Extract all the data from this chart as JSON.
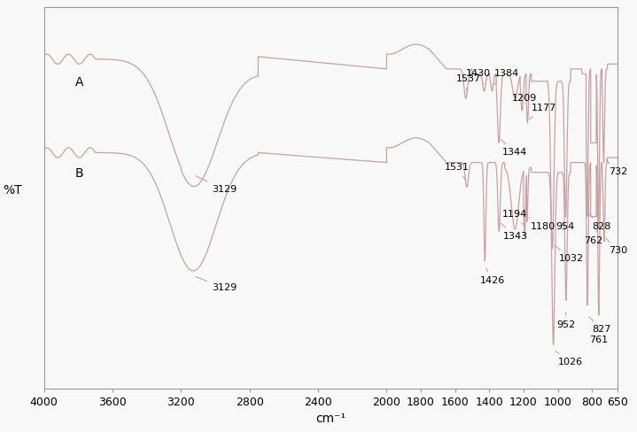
{
  "xlabel": "cm⁻¹",
  "ylabel": "%T",
  "xlim_left": 4000,
  "xlim_right": 650,
  "background_color": "#f5f5f5",
  "line_color": "#c0a0a0",
  "xticks": [
    4000,
    3600,
    3200,
    2800,
    2400,
    2000,
    1800,
    1600,
    1400,
    1200,
    1000,
    800,
    650
  ],
  "label_A": "A",
  "label_B": "B",
  "ylabel_label": "%T",
  "ann_fontsize": 8,
  "label_fontsize": 10,
  "tick_fontsize": 9
}
